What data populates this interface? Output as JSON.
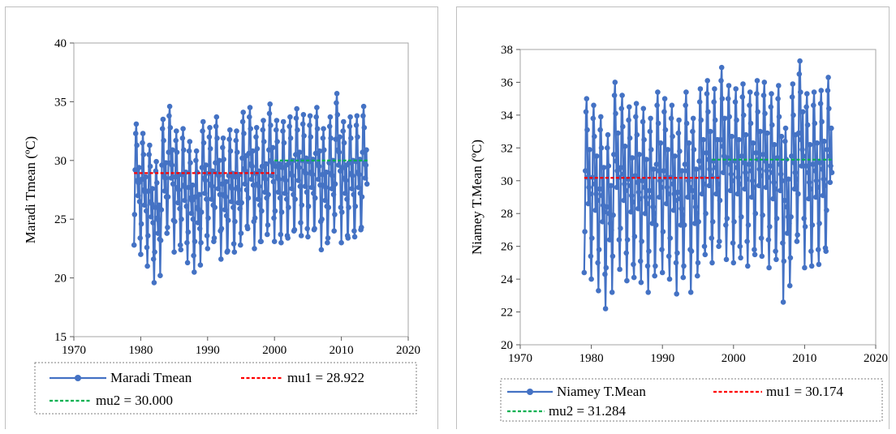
{
  "chart_data": [
    {
      "type": "line",
      "ylabel": "Maradi Tmean (ºC)",
      "xlim": [
        1970,
        2020
      ],
      "ylim": [
        15,
        40
      ],
      "xticks": [
        1970,
        1980,
        1990,
        2000,
        2010,
        2020
      ],
      "yticks": [
        15,
        20,
        25,
        30,
        35,
        40
      ],
      "grid": false,
      "legend_placement": "bottom",
      "series": [
        {
          "name": "Maradi Tmean",
          "color": "#4472c4",
          "marker": "circle",
          "start_year": 1979,
          "end_year": 2013.9,
          "monthly_profile": [
            22.8,
            25.4,
            29.2,
            32.3,
            33.1,
            31.3,
            28.3,
            27.0,
            28.1,
            29.4,
            26.5,
            23.4
          ],
          "year_offsets": [
            0.0,
            -0.8,
            -1.8,
            -3.2,
            0.4,
            1.5,
            -0.6,
            -0.4,
            -1.5,
            -2.3,
            0.2,
            -0.3,
            0.6,
            -1.2,
            -0.5,
            -0.6,
            1.0,
            1.4,
            -0.3,
            0.3,
            1.7,
            0.3,
            0.2,
            0.6,
            1.3,
            0.8,
            0.7,
            1.4,
            -0.4,
            0.6,
            2.6,
            0.2,
            0.6,
            0.7,
            1.5
          ]
        },
        {
          "name": "mu1 = 28.922",
          "color": "#ff0000",
          "dash": true,
          "x": [
            1979,
            2000
          ],
          "values": [
            28.922,
            28.922
          ]
        },
        {
          "name": "mu2 = 30.000",
          "color": "#00b050",
          "dash": true,
          "x": [
            2000,
            2014
          ],
          "values": [
            30.0,
            30.0
          ]
        }
      ]
    },
    {
      "type": "line",
      "ylabel": "Niamey T.Mean (ºC)",
      "xlim": [
        1970,
        2020
      ],
      "ylim": [
        20,
        38
      ],
      "xticks": [
        1970,
        1980,
        1990,
        2000,
        2010,
        2020
      ],
      "yticks": [
        20,
        22,
        24,
        26,
        28,
        30,
        32,
        34,
        36,
        38
      ],
      "grid": false,
      "legend_placement": "bottom",
      "series": [
        {
          "name": "Niamey T.Mean",
          "color": "#4472c4",
          "marker": "circle",
          "start_year": 1979,
          "end_year": 2013.9,
          "monthly_profile": [
            24.4,
            26.9,
            30.6,
            34.2,
            35.0,
            33.1,
            30.2,
            28.6,
            29.6,
            31.9,
            29.2,
            25.4
          ],
          "year_offsets": [
            0.0,
            -0.4,
            -1.1,
            -2.2,
            1.0,
            0.2,
            -0.5,
            -0.3,
            -0.6,
            -1.2,
            0.4,
            0.0,
            -0.4,
            -1.3,
            0.4,
            -1.2,
            0.6,
            1.1,
            0.6,
            1.9,
            0.8,
            0.6,
            0.9,
            0.4,
            1.1,
            1.0,
            0.3,
            0.8,
            -1.8,
            0.9,
            2.3,
            0.3,
            0.4,
            0.5,
            1.3
          ]
        },
        {
          "name": "mu1 = 30.174",
          "color": "#ff0000",
          "dash": true,
          "x": [
            1979,
            1998
          ],
          "values": [
            30.174,
            30.174
          ]
        },
        {
          "name": "mu2 = 31.284",
          "color": "#00b050",
          "dash": true,
          "x": [
            1997,
            2014
          ],
          "values": [
            31.284,
            31.284
          ]
        }
      ]
    }
  ]
}
